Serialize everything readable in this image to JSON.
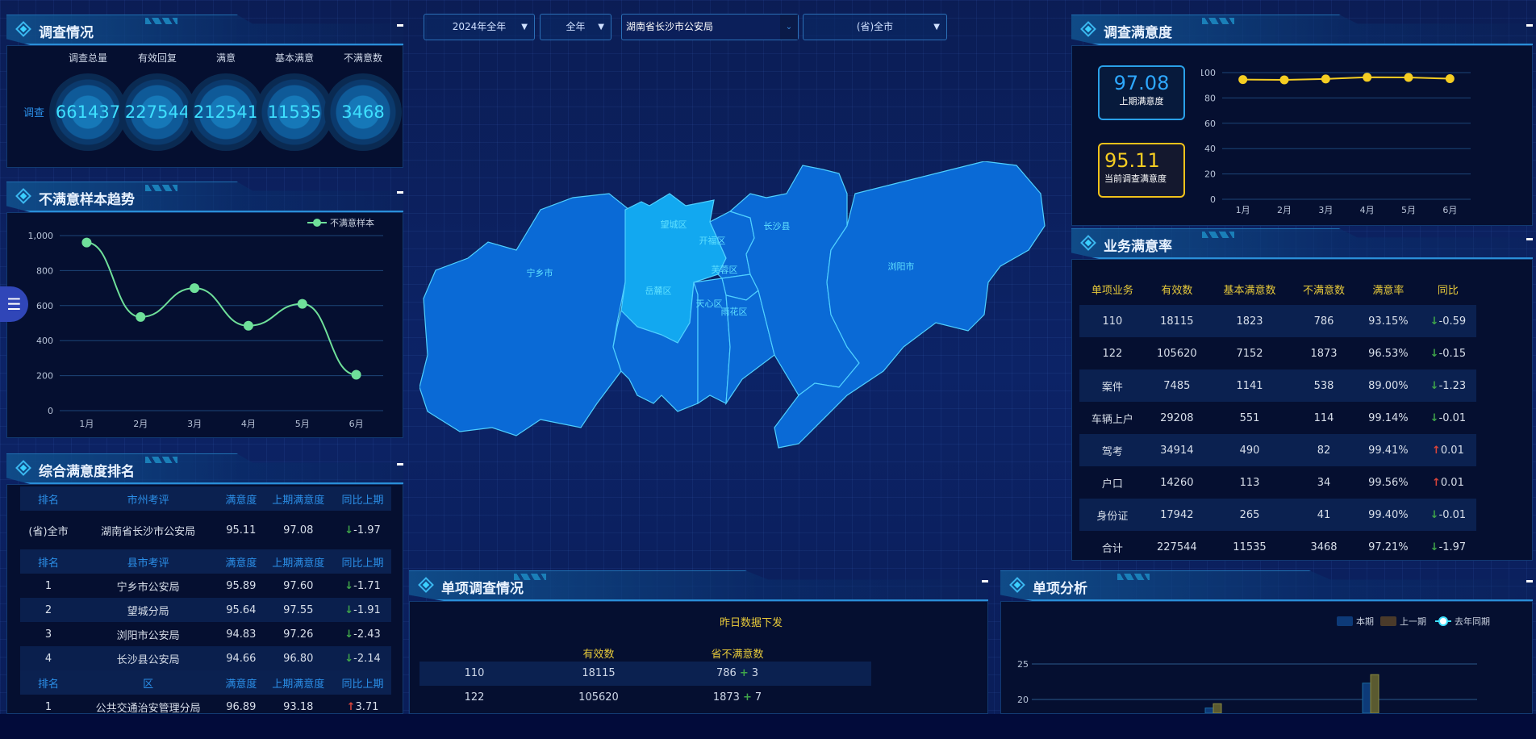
{
  "filters": {
    "year": "2024年全年",
    "period": "全年",
    "bureau": "湖南省长沙市公安局",
    "area": "(省)全市"
  },
  "survey": {
    "title": "调查情况",
    "row_label": "调查",
    "metrics": [
      {
        "label": "调查总量",
        "value": "661437"
      },
      {
        "label": "有效回复",
        "value": "227544"
      },
      {
        "label": "满意",
        "value": "212541"
      },
      {
        "label": "基本满意",
        "value": "11535"
      },
      {
        "label": "不满意数",
        "value": "3468"
      }
    ]
  },
  "trend": {
    "title": "不满意样本趋势",
    "chart_data": {
      "type": "line",
      "categories": [
        "1月",
        "2月",
        "3月",
        "4月",
        "5月",
        "6月"
      ],
      "series": [
        {
          "name": "不满意样本",
          "values": [
            960,
            535,
            700,
            485,
            610,
            205
          ]
        }
      ],
      "ylim": [
        0,
        1000
      ],
      "yticks": [
        "0",
        "200",
        "400",
        "600",
        "800",
        "1,000"
      ],
      "grid": true,
      "legend": "top-right",
      "color": "#6fe09a"
    }
  },
  "ranking": {
    "title": "综合满意度排名",
    "sections": [
      {
        "headers": [
          "排名",
          "市州考评",
          "满意度",
          "上期满意度",
          "同比上期"
        ],
        "rows": [
          {
            "rank": "(省)全市",
            "name": "湖南省长沙市公安局",
            "sat": "95.11",
            "prev": "97.08",
            "dir": "down",
            "chg": "-1.97"
          }
        ]
      },
      {
        "headers": [
          "排名",
          "县市考评",
          "满意度",
          "上期满意度",
          "同比上期"
        ],
        "rows": [
          {
            "rank": "1",
            "name": "宁乡市公安局",
            "sat": "95.89",
            "prev": "97.60",
            "dir": "down",
            "chg": "-1.71"
          },
          {
            "rank": "2",
            "name": "望城分局",
            "sat": "95.64",
            "prev": "97.55",
            "dir": "down",
            "chg": "-1.91"
          },
          {
            "rank": "3",
            "name": "浏阳市公安局",
            "sat": "94.83",
            "prev": "97.26",
            "dir": "down",
            "chg": "-2.43"
          },
          {
            "rank": "4",
            "name": "长沙县公安局",
            "sat": "94.66",
            "prev": "96.80",
            "dir": "down",
            "chg": "-2.14"
          }
        ]
      },
      {
        "headers": [
          "排名",
          "区",
          "满意度",
          "上期满意度",
          "同比上期"
        ],
        "rows": [
          {
            "rank": "1",
            "name": "公共交通治安管理分局",
            "sat": "96.89",
            "prev": "93.18",
            "dir": "up",
            "chg": "3.71"
          }
        ]
      }
    ]
  },
  "map": {
    "regions": [
      {
        "name": "宁乡市",
        "highlight": false
      },
      {
        "name": "望城区",
        "highlight": true
      },
      {
        "name": "岳麓区",
        "highlight": false
      },
      {
        "name": "开福区",
        "highlight": false
      },
      {
        "name": "芙蓉区",
        "highlight": false
      },
      {
        "name": "天心区",
        "highlight": false
      },
      {
        "name": "雨花区",
        "highlight": false
      },
      {
        "name": "长沙县",
        "highlight": false
      },
      {
        "name": "浏阳市",
        "highlight": false
      }
    ],
    "fill": "#0a6ad6",
    "highlight_fill": "#12a8f0"
  },
  "satisfaction": {
    "title": "调查满意度",
    "prev_value": "97.08",
    "prev_label": "上期满意度",
    "curr_value": "95.11",
    "curr_label": "当前调查满意度",
    "chart_data": {
      "type": "line",
      "categories": [
        "1月",
        "2月",
        "3月",
        "4月",
        "5月",
        "6月"
      ],
      "series": [
        {
          "values": [
            94.5,
            94.3,
            95.0,
            96.3,
            96.2,
            95.2
          ]
        }
      ],
      "ylim": [
        0,
        100
      ],
      "yticks": [
        "0",
        "20",
        "40",
        "60",
        "80",
        "100"
      ],
      "grid": true,
      "color": "#f5cd22"
    }
  },
  "business": {
    "title": "业务满意率",
    "headers": [
      "单项业务",
      "有效数",
      "基本满意数",
      "不满意数",
      "满意率",
      "同比"
    ],
    "rows": [
      {
        "item": "110",
        "valid": "18115",
        "basic": "1823",
        "unsat": "786",
        "rate": "93.15%",
        "dir": "down",
        "chg": "-0.59"
      },
      {
        "item": "122",
        "valid": "105620",
        "basic": "7152",
        "unsat": "1873",
        "rate": "96.53%",
        "dir": "down",
        "chg": "-0.15"
      },
      {
        "item": "案件",
        "valid": "7485",
        "basic": "1141",
        "unsat": "538",
        "rate": "89.00%",
        "dir": "down",
        "chg": "-1.23"
      },
      {
        "item": "车辆上户",
        "valid": "29208",
        "basic": "551",
        "unsat": "114",
        "rate": "99.14%",
        "dir": "down",
        "chg": "-0.01"
      },
      {
        "item": "驾考",
        "valid": "34914",
        "basic": "490",
        "unsat": "82",
        "rate": "99.41%",
        "dir": "up",
        "chg": "0.01"
      },
      {
        "item": "户口",
        "valid": "14260",
        "basic": "113",
        "unsat": "34",
        "rate": "99.56%",
        "dir": "up",
        "chg": "0.01"
      },
      {
        "item": "身份证",
        "valid": "17942",
        "basic": "265",
        "unsat": "41",
        "rate": "99.40%",
        "dir": "down",
        "chg": "-0.01"
      },
      {
        "item": "合计",
        "valid": "227544",
        "basic": "11535",
        "unsat": "3468",
        "rate": "97.21%",
        "dir": "down",
        "chg": "-1.97"
      }
    ]
  },
  "single": {
    "title": "单项调查情况",
    "caption": "昨日数据下发",
    "headers": [
      "",
      "有效数",
      "省不满意数"
    ],
    "rows": [
      {
        "item": "110",
        "valid": "18115",
        "unsat": "786",
        "add": "3"
      },
      {
        "item": "122",
        "valid": "105620",
        "unsat": "1873",
        "add": "7"
      }
    ]
  },
  "analysis": {
    "title": "单项分析",
    "chart_data": {
      "type": "bar",
      "legend": "top-right",
      "series": [
        {
          "name": "本期",
          "color": "#0d3a78",
          "values": [
            18.8,
            22.3
          ]
        },
        {
          "name": "上一期",
          "color": "#5a5a30",
          "values": [
            19.4,
            23.5
          ]
        },
        {
          "name": "去年同期",
          "color": "#3ee0ff",
          "values": []
        }
      ],
      "yticks": [
        "20",
        "25"
      ]
    }
  }
}
